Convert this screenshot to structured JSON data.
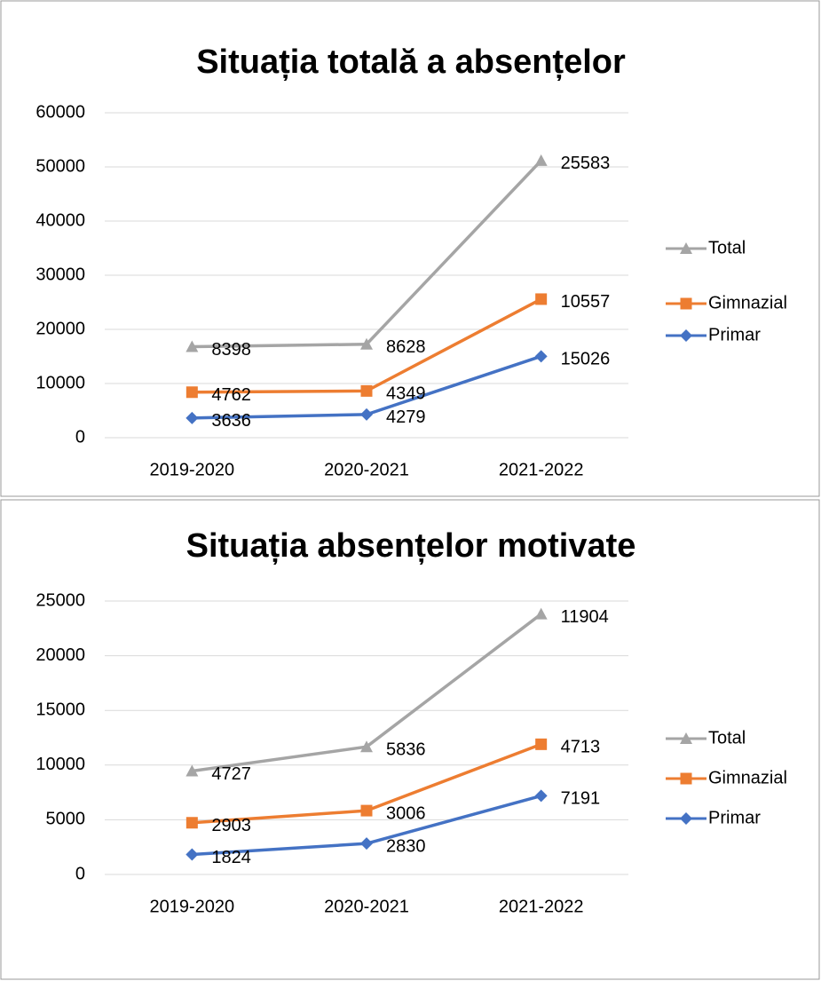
{
  "chart_data": [
    {
      "type": "line",
      "stacked": true,
      "title": "Situația totală a absențelor",
      "categories": [
        "2019-2020",
        "2020-2021",
        "2021-2022"
      ],
      "series": [
        {
          "name": "Primar",
          "color": "#4472c4",
          "marker": "diamond",
          "values": [
            3636,
            4279,
            15026
          ]
        },
        {
          "name": "Gimnazial",
          "color": "#ed7d31",
          "marker": "square",
          "values": [
            4762,
            4349,
            10557
          ]
        },
        {
          "name": "Total",
          "color": "#a5a5a5",
          "marker": "triangle",
          "values": [
            8398,
            8628,
            25583
          ]
        }
      ],
      "ylim": [
        0,
        60000
      ],
      "yticks": [
        0,
        10000,
        20000,
        30000,
        40000,
        50000,
        60000
      ],
      "grid": true,
      "legend": "right"
    },
    {
      "type": "line",
      "stacked": true,
      "title": "Situația absențelor motivate",
      "categories": [
        "2019-2020",
        "2020-2021",
        "2021-2022"
      ],
      "series": [
        {
          "name": "Primar",
          "color": "#4472c4",
          "marker": "diamond",
          "values": [
            1824,
            2830,
            7191
          ]
        },
        {
          "name": "Gimnazial",
          "color": "#ed7d31",
          "marker": "square",
          "values": [
            2903,
            3006,
            4713
          ]
        },
        {
          "name": "Total",
          "color": "#a5a5a5",
          "marker": "triangle",
          "values": [
            4727,
            5836,
            11904
          ]
        }
      ],
      "ylim": [
        0,
        25000
      ],
      "yticks": [
        0,
        5000,
        10000,
        15000,
        20000,
        25000
      ],
      "grid": true,
      "legend": "right"
    }
  ]
}
